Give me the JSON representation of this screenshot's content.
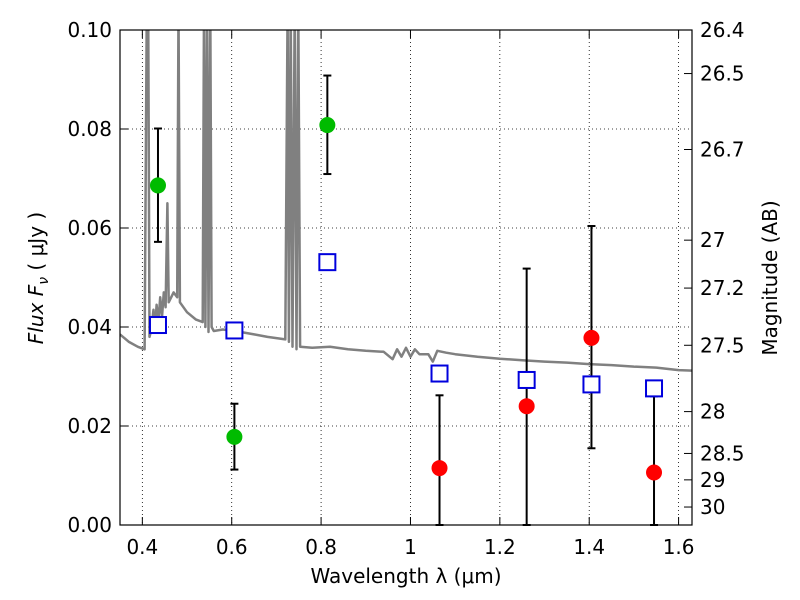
{
  "chart_data": {
    "type": "scatter",
    "xlabel": "Wavelength  λ (μm)",
    "ylabel": "Flux  F",
    "ylabel_sub": "ν",
    "ylabel_unit": "  ( μJy )",
    "y2label": "Magnitude (AB)",
    "xlim": [
      0.35,
      1.63
    ],
    "ylim": [
      0.0,
      0.1
    ],
    "grid": true,
    "x_ticks": [
      {
        "value": 0.4,
        "label": "0.4"
      },
      {
        "value": 0.6,
        "label": "0.6"
      },
      {
        "value": 0.8,
        "label": "0.8"
      },
      {
        "value": 1.0,
        "label": "1"
      },
      {
        "value": 1.2,
        "label": "1.2"
      },
      {
        "value": 1.4,
        "label": "1.4"
      },
      {
        "value": 1.6,
        "label": "1.6"
      }
    ],
    "y_ticks": [
      {
        "value": 0.0,
        "label": "0.00"
      },
      {
        "value": 0.02,
        "label": "0.02"
      },
      {
        "value": 0.04,
        "label": "0.04"
      },
      {
        "value": 0.06,
        "label": "0.06"
      },
      {
        "value": 0.08,
        "label": "0.08"
      },
      {
        "value": 0.1,
        "label": "0.10"
      }
    ],
    "mag_ticks": [
      {
        "mag": 26.4,
        "label": "26.4"
      },
      {
        "mag": 26.5,
        "label": "26.5"
      },
      {
        "mag": 26.7,
        "label": "26.7"
      },
      {
        "mag": 27.0,
        "label": "27"
      },
      {
        "mag": 27.2,
        "label": "27.2"
      },
      {
        "mag": 27.5,
        "label": "27.5"
      },
      {
        "mag": 28.0,
        "label": "28"
      },
      {
        "mag": 28.5,
        "label": "28.5"
      },
      {
        "mag": 29.0,
        "label": "29"
      },
      {
        "mag": 30.0,
        "label": "30"
      }
    ],
    "series": [
      {
        "marker": "circle",
        "color": "#00bb00",
        "points": [
          {
            "x": 0.435,
            "y": 0.0686,
            "err_low": 0.0572,
            "err_high": 0.0801
          },
          {
            "x": 0.606,
            "y": 0.0178,
            "err_low": 0.0112,
            "err_high": 0.0245
          },
          {
            "x": 0.814,
            "y": 0.0808,
            "err_low": 0.0709,
            "err_high": 0.0908
          }
        ]
      },
      {
        "marker": "circle",
        "color": "#ff0000",
        "points": [
          {
            "x": 1.065,
            "y": 0.0115,
            "err_low": 0.0,
            "err_high": 0.0262
          },
          {
            "x": 1.26,
            "y": 0.024,
            "err_low": 0.0,
            "err_high": 0.0518
          },
          {
            "x": 1.405,
            "y": 0.0378,
            "err_low": 0.0155,
            "err_high": 0.0604
          },
          {
            "x": 1.545,
            "y": 0.0106,
            "err_low": 0.0,
            "err_high": 0.026
          }
        ]
      },
      {
        "marker": "square",
        "color": "#0000dd",
        "points": [
          {
            "x": 0.435,
            "y": 0.0404
          },
          {
            "x": 0.606,
            "y": 0.0393
          },
          {
            "x": 0.814,
            "y": 0.0531
          },
          {
            "x": 1.065,
            "y": 0.0306
          },
          {
            "x": 1.26,
            "y": 0.0293
          },
          {
            "x": 1.405,
            "y": 0.0284
          },
          {
            "x": 1.545,
            "y": 0.0276
          }
        ]
      }
    ],
    "model_spectrum": {
      "color": "#808080",
      "points": [
        [
          0.35,
          0.0385
        ],
        [
          0.37,
          0.037
        ],
        [
          0.39,
          0.036
        ],
        [
          0.405,
          0.0355
        ],
        [
          0.41,
          0.105
        ],
        [
          0.413,
          0.105
        ],
        [
          0.416,
          0.038
        ],
        [
          0.42,
          0.0395
        ],
        [
          0.425,
          0.0435
        ],
        [
          0.428,
          0.039
        ],
        [
          0.432,
          0.0445
        ],
        [
          0.436,
          0.041
        ],
        [
          0.44,
          0.046
        ],
        [
          0.444,
          0.042
        ],
        [
          0.448,
          0.047
        ],
        [
          0.452,
          0.044
        ],
        [
          0.456,
          0.065
        ],
        [
          0.459,
          0.045
        ],
        [
          0.47,
          0.047
        ],
        [
          0.478,
          0.046
        ],
        [
          0.481,
          0.105
        ],
        [
          0.484,
          0.045
        ],
        [
          0.5,
          0.043
        ],
        [
          0.52,
          0.0415
        ],
        [
          0.535,
          0.041
        ],
        [
          0.538,
          0.105
        ],
        [
          0.541,
          0.04
        ],
        [
          0.545,
          0.105
        ],
        [
          0.548,
          0.039
        ],
        [
          0.552,
          0.105
        ],
        [
          0.555,
          0.04
        ],
        [
          0.56,
          0.0392
        ],
        [
          0.58,
          0.0395
        ],
        [
          0.62,
          0.039
        ],
        [
          0.65,
          0.0385
        ],
        [
          0.68,
          0.038
        ],
        [
          0.72,
          0.0375
        ],
        [
          0.725,
          0.105
        ],
        [
          0.728,
          0.037
        ],
        [
          0.732,
          0.105
        ],
        [
          0.736,
          0.036
        ],
        [
          0.741,
          0.105
        ],
        [
          0.745,
          0.0355
        ],
        [
          0.749,
          0.105
        ],
        [
          0.753,
          0.036
        ],
        [
          0.78,
          0.0358
        ],
        [
          0.82,
          0.036
        ],
        [
          0.86,
          0.0355
        ],
        [
          0.9,
          0.0352
        ],
        [
          0.94,
          0.035
        ],
        [
          0.96,
          0.0335
        ],
        [
          0.97,
          0.0355
        ],
        [
          0.98,
          0.034
        ],
        [
          0.99,
          0.0358
        ],
        [
          1.0,
          0.034
        ],
        [
          1.01,
          0.0355
        ],
        [
          1.02,
          0.0345
        ],
        [
          1.04,
          0.0345
        ],
        [
          1.05,
          0.033
        ],
        [
          1.06,
          0.0352
        ],
        [
          1.08,
          0.0348
        ],
        [
          1.1,
          0.0345
        ],
        [
          1.15,
          0.034
        ],
        [
          1.2,
          0.0336
        ],
        [
          1.25,
          0.0333
        ],
        [
          1.3,
          0.033
        ],
        [
          1.35,
          0.0328
        ],
        [
          1.4,
          0.0325
        ],
        [
          1.45,
          0.0323
        ],
        [
          1.5,
          0.032
        ],
        [
          1.55,
          0.0318
        ],
        [
          1.6,
          0.0313
        ],
        [
          1.63,
          0.0312
        ]
      ]
    }
  }
}
